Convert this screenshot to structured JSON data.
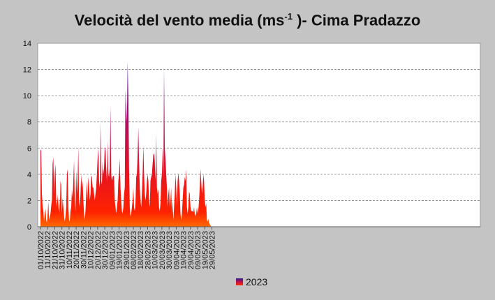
{
  "chart_data": {
    "type": "area",
    "title_main": "Velocità del vento media (ms",
    "title_sup": "-1",
    "title_end": " )- Cima Pradazzo",
    "ylim": [
      0,
      14
    ],
    "yticks": [
      0,
      2,
      4,
      6,
      8,
      10,
      12,
      14
    ],
    "grid": true,
    "legend_position": "bottom",
    "series": [
      {
        "name": "2023"
      }
    ],
    "xtick_labels": [
      "01/10/2022",
      "11/10/2022",
      "21/10/2022",
      "31/10/2022",
      "10/11/2022",
      "20/11/2022",
      "30/11/2022",
      "10/12/2022",
      "20/12/2022",
      "30/12/2022",
      "09/01/2023",
      "19/01/2023",
      "29/01/2023",
      "08/02/2023",
      "18/02/2023",
      "28/02/2023",
      "10/03/2023",
      "20/03/2023",
      "30/03/2023",
      "09/04/2023",
      "19/04/2023",
      "29/04/2023",
      "09/05/2023",
      "19/05/2023",
      "29/05/2023"
    ],
    "day_values": [
      5.8,
      5.9,
      2.5,
      1.5,
      1.2,
      0.4,
      1.0,
      1.4,
      0.5,
      0.3,
      1.0,
      1.9,
      0.5,
      0.8,
      1.0,
      1.6,
      2.0,
      4.8,
      5.3,
      2.5,
      4.0,
      4.8,
      2.0,
      1.5,
      2.5,
      1.2,
      2.2,
      1.0,
      3.5,
      3.2,
      1.0,
      2.2,
      1.5,
      0.8,
      0.4,
      0.8,
      1.5,
      4.0,
      4.4,
      1.5,
      0.5,
      0.4,
      1.2,
      1.5,
      2.8,
      2.2,
      3.5,
      5.1,
      2.0,
      1.2,
      4.3,
      2.5,
      3.5,
      6.1,
      2.0,
      1.5,
      2.5,
      4.0,
      3.0,
      3.5,
      2.0,
      1.0,
      0.5,
      1.2,
      2.5,
      3.5,
      2.0,
      3.8,
      3.2,
      2.0,
      2.5,
      3.9,
      3.8,
      3.0,
      3.0,
      2.5,
      2.0,
      2.5,
      3.0,
      4.0,
      5.2,
      6.0,
      3.5,
      3.0,
      8.0,
      3.5,
      3.2,
      5.0,
      4.0,
      4.5,
      6.1,
      5.8,
      4.5,
      3.5,
      6.6,
      4.0,
      3.8,
      4.5,
      9.2,
      4.0,
      3.5,
      3.8,
      3.9,
      3.8,
      2.0,
      1.5,
      1.0,
      1.5,
      2.0,
      3.5,
      4.0,
      5.2,
      3.0,
      2.0,
      1.2,
      1.0,
      1.5,
      2.5,
      3.0,
      10.4,
      9.0,
      8.0,
      12.6,
      10.0,
      4.5,
      1.5,
      0.8,
      1.0,
      1.5,
      2.0,
      3.0,
      1.5,
      1.2,
      1.8,
      3.8,
      4.0,
      5.5,
      7.6,
      5.0,
      3.0,
      2.0,
      1.5,
      2.5,
      4.0,
      6.2,
      4.0,
      2.5,
      2.0,
      2.5,
      3.5,
      4.0,
      3.5,
      2.0,
      1.5,
      3.5,
      3.8,
      4.0,
      4.8,
      5.5,
      5.6,
      5.0,
      3.5,
      7.1,
      3.0,
      2.5,
      2.9,
      1.5,
      1.2,
      1.8,
      3.5,
      4.0,
      6.0,
      3.5,
      12.1,
      6.0,
      5.2,
      4.0,
      3.0,
      1.5,
      2.5,
      3.0,
      1.5,
      2.0,
      3.0,
      1.0,
      2.0,
      0.5,
      1.5,
      2.5,
      4.0,
      3.0,
      1.5,
      3.5,
      4.1,
      3.5,
      2.5,
      1.0,
      0.5,
      1.0,
      2.0,
      3.0,
      3.2,
      3.8,
      3.5,
      4.4,
      1.5,
      1.0,
      1.5,
      2.7,
      2.5,
      1.5,
      1.2,
      1.2,
      1.2,
      1.1,
      1.5,
      1.0,
      0.8,
      1.0,
      1.5,
      1.0,
      1.3,
      2.0,
      3.0,
      4.4,
      3.5,
      2.5,
      3.0,
      4.0,
      3.5,
      2.0,
      1.5,
      1.8,
      0.5,
      0.4,
      0.6,
      0.3,
      0.2,
      0.1,
      0
    ]
  }
}
